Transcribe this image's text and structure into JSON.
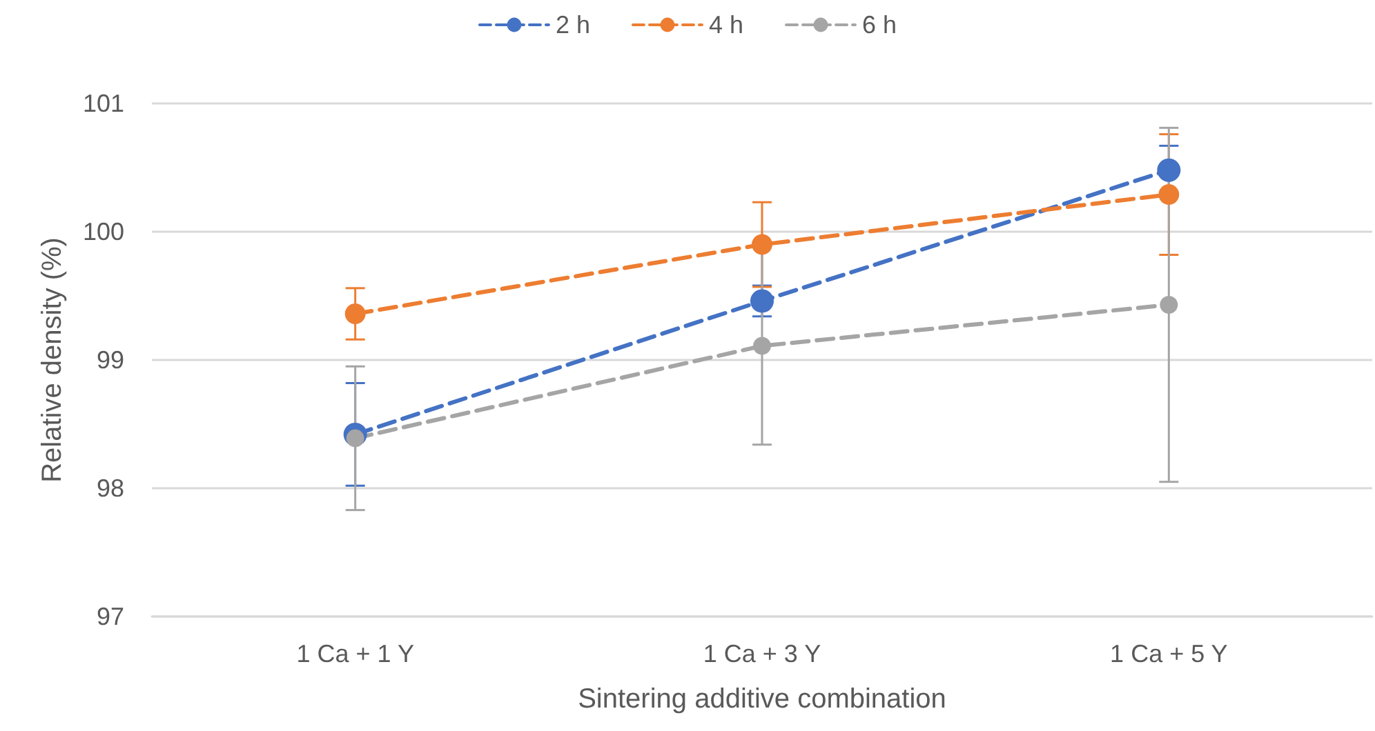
{
  "chart_data": {
    "type": "line",
    "xlabel": "Sintering additive combination",
    "ylabel": "Relative density (%)",
    "categories": [
      "1 Ca + 1 Y",
      "1 Ca + 3 Y",
      "1 Ca + 5 Y"
    ],
    "series": [
      {
        "name": "2 h",
        "color": "#4472c4",
        "values": [
          98.42,
          99.46,
          100.48
        ],
        "errors": [
          0.4,
          0.12,
          0.19
        ]
      },
      {
        "name": "4 h",
        "color": "#ed7d31",
        "values": [
          99.36,
          99.9,
          100.29
        ],
        "errors": [
          0.2,
          0.33,
          0.47
        ]
      },
      {
        "name": "6 h",
        "color": "#a5a5a5",
        "values": [
          98.39,
          99.11,
          99.43
        ],
        "errors": [
          0.56,
          0.77,
          1.38
        ]
      }
    ],
    "ylim": [
      97,
      101
    ],
    "yticks": [
      97,
      98,
      99,
      100,
      101
    ],
    "grid": "y",
    "legend": "top",
    "marker": "circle",
    "line_style": "dashed"
  }
}
